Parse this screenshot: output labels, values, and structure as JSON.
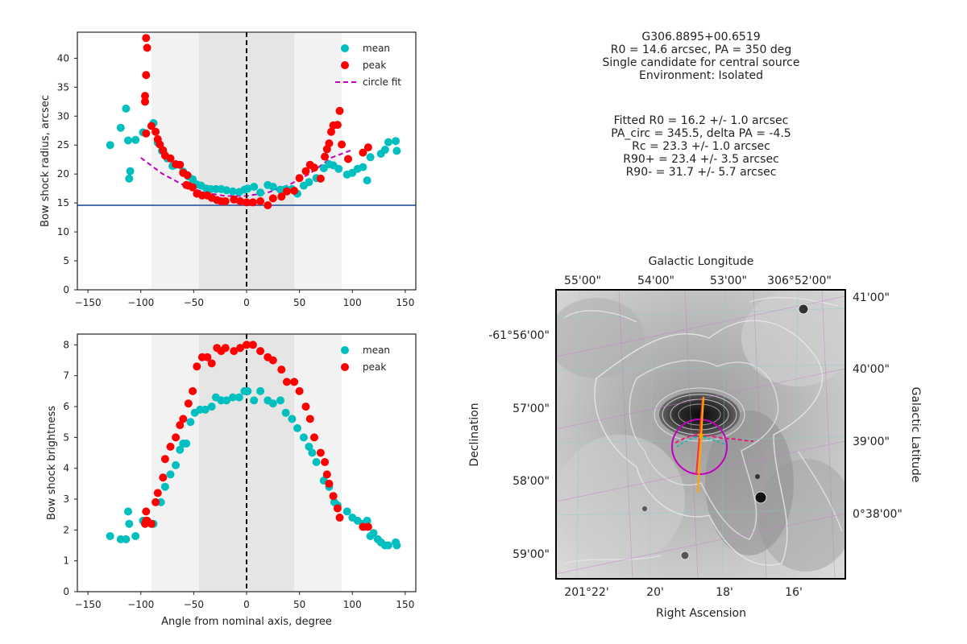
{
  "info": {
    "block1": [
      "G306.8895+00.6519",
      "R0 = 14.6 arcsec, PA = 350 deg",
      "Single candidate for central source",
      "Environment: Isolated"
    ],
    "block2": [
      "Fitted R0 = 16.2 +/- 1.0 arcsec",
      "PA_circ = 345.5, delta PA = -4.5",
      "Rc = 23.3 +/- 1.0 arcsec",
      "R90+ = 23.4 +/- 3.5 arcsec",
      "R90- = 31.7 +/- 5.7 arcsec"
    ]
  },
  "colors": {
    "mean": "#00bfbf",
    "peak": "#ff0000",
    "fit": "#bf00bf",
    "hline": "#4c72b0",
    "band_outer": "#f2f2f2",
    "band_inner": "#e5e5e5"
  },
  "chart_data": [
    {
      "type": "scatter",
      "xlim": [
        -160,
        160
      ],
      "ylim": [
        0,
        44.5
      ],
      "xticks": [
        -150,
        -100,
        -50,
        0,
        50,
        100,
        150
      ],
      "yticks": [
        0,
        5,
        10,
        15,
        20,
        25,
        30,
        35,
        40
      ],
      "xlabel": "",
      "ylabel": "Bow shock radius, arcsec",
      "legend": {
        "placement": "top-right",
        "entries": [
          "mean",
          "peak",
          "circle fit"
        ]
      },
      "bands": [
        [
          -90,
          90
        ],
        [
          -45,
          45
        ]
      ],
      "vline": 0,
      "hline": 14.6,
      "series": [
        {
          "name": "mean",
          "points": [
            [
              -129,
              25
            ],
            [
              -119,
              28
            ],
            [
              -114,
              31.3
            ],
            [
              -112,
              25.8
            ],
            [
              -111,
              19.2
            ],
            [
              -110,
              20.5
            ],
            [
              -105,
              25.9
            ],
            [
              -98,
              27.2
            ],
            [
              -88,
              28.8
            ],
            [
              -84,
              25.4
            ],
            [
              -80,
              24
            ],
            [
              -75,
              22.7
            ],
            [
              -70,
              21.4
            ],
            [
              -67,
              21.6
            ],
            [
              -60,
              20.4
            ],
            [
              -55,
              19.6
            ],
            [
              -51,
              19.1
            ],
            [
              -47,
              18.2
            ],
            [
              -43,
              18
            ],
            [
              -38,
              17.5
            ],
            [
              -34,
              17.4
            ],
            [
              -29,
              17.4
            ],
            [
              -24,
              17.4
            ],
            [
              -19,
              17.2
            ],
            [
              -13,
              17
            ],
            [
              -7,
              16.9
            ],
            [
              -2,
              17.3
            ],
            [
              1,
              17.5
            ],
            [
              7,
              17.8
            ],
            [
              13,
              16.8
            ],
            [
              20,
              18.1
            ],
            [
              25,
              17.8
            ],
            [
              32,
              17.3
            ],
            [
              37,
              17.4
            ],
            [
              43,
              17.4
            ],
            [
              48,
              16.6
            ],
            [
              54,
              18
            ],
            [
              59,
              18.6
            ],
            [
              66,
              19.3
            ],
            [
              73,
              21
            ],
            [
              78,
              21.7
            ],
            [
              82,
              21.5
            ],
            [
              87,
              20.9
            ],
            [
              95,
              19.9
            ],
            [
              100,
              20.2
            ],
            [
              105,
              20.9
            ],
            [
              110,
              21.2
            ],
            [
              114,
              18.9
            ],
            [
              117,
              22.9
            ],
            [
              127,
              23.5
            ],
            [
              131,
              24.2
            ],
            [
              134,
              25.5
            ],
            [
              141,
              25.7
            ],
            [
              142,
              24
            ]
          ]
        },
        {
          "name": "peak",
          "points": [
            [
              -95,
              43.5
            ],
            [
              -94,
              41.8
            ],
            [
              -95,
              37.1
            ],
            [
              -96,
              33.5
            ],
            [
              -96,
              32.5
            ],
            [
              -95,
              27
            ],
            [
              -90,
              28.3
            ],
            [
              -86,
              27.3
            ],
            [
              -84,
              26
            ],
            [
              -82,
              25.1
            ],
            [
              -79,
              24.1
            ],
            [
              -77,
              23.2
            ],
            [
              -72,
              22.7
            ],
            [
              -67,
              21.7
            ],
            [
              -63,
              21.6
            ],
            [
              -60,
              20.2
            ],
            [
              -56,
              19.8
            ],
            [
              -57,
              18.1
            ],
            [
              -55,
              18
            ],
            [
              -51,
              17.7
            ],
            [
              -47,
              16.6
            ],
            [
              -42,
              16.3
            ],
            [
              -37,
              16.3
            ],
            [
              -33,
              15.9
            ],
            [
              -28,
              15.5
            ],
            [
              -24,
              15.3
            ],
            [
              -20,
              15.3
            ],
            [
              -12,
              15.6
            ],
            [
              -6,
              15.3
            ],
            [
              0,
              15.1
            ],
            [
              6,
              15.1
            ],
            [
              13,
              15.3
            ],
            [
              20,
              14.6
            ],
            [
              25,
              15.8
            ],
            [
              33,
              16.1
            ],
            [
              38,
              17
            ],
            [
              45,
              17.1
            ],
            [
              50,
              19.3
            ],
            [
              56,
              20.5
            ],
            [
              60,
              21.6
            ],
            [
              64,
              21.1
            ],
            [
              70,
              19.2
            ],
            [
              74,
              23
            ],
            [
              76,
              24.3
            ],
            [
              78,
              25.3
            ],
            [
              80,
              27.3
            ],
            [
              82,
              28.4
            ],
            [
              86,
              28.5
            ],
            [
              88,
              30.9
            ],
            [
              90,
              25.1
            ],
            [
              96,
              22.6
            ],
            [
              110,
              23.7
            ],
            [
              115,
              24.6
            ]
          ]
        }
      ],
      "fit_curve": [
        [
          -100,
          22.8
        ],
        [
          -80,
          20.1
        ],
        [
          -60,
          18.1
        ],
        [
          -40,
          16.8
        ],
        [
          -20,
          16.2
        ],
        [
          0,
          16.2
        ],
        [
          20,
          16.8
        ],
        [
          40,
          18.1
        ],
        [
          60,
          20.1
        ],
        [
          80,
          22.8
        ],
        [
          100,
          24.2
        ]
      ]
    },
    {
      "type": "scatter",
      "xlim": [
        -160,
        160
      ],
      "ylim": [
        0,
        8.35
      ],
      "xticks": [
        -150,
        -100,
        -50,
        0,
        50,
        100,
        150
      ],
      "yticks": [
        0,
        1,
        2,
        3,
        4,
        5,
        6,
        7,
        8
      ],
      "xlabel": "Angle from nominal axis, degree",
      "ylabel": "Bow shock brightness",
      "legend": {
        "placement": "top-right",
        "entries": [
          "mean",
          "peak"
        ]
      },
      "bands": [
        [
          -90,
          90
        ],
        [
          -45,
          45
        ]
      ],
      "vline": 0,
      "series": [
        {
          "name": "mean",
          "points": [
            [
              -129,
              1.8
            ],
            [
              -119,
              1.7
            ],
            [
              -114,
              1.7
            ],
            [
              -112,
              2.6
            ],
            [
              -111,
              2.2
            ],
            [
              -105,
              1.8
            ],
            [
              -98,
              2.3
            ],
            [
              -94,
              2.3
            ],
            [
              -88,
              2.2
            ],
            [
              -81,
              2.9
            ],
            [
              -77,
              3.4
            ],
            [
              -72,
              3.8
            ],
            [
              -67,
              4.1
            ],
            [
              -63,
              4.6
            ],
            [
              -60,
              4.8
            ],
            [
              -57,
              4.8
            ],
            [
              -53,
              5.5
            ],
            [
              -49,
              5.8
            ],
            [
              -44,
              5.9
            ],
            [
              -39,
              5.9
            ],
            [
              -33,
              6
            ],
            [
              -29,
              6.3
            ],
            [
              -24,
              6.2
            ],
            [
              -19,
              6.2
            ],
            [
              -13,
              6.3
            ],
            [
              -7,
              6.3
            ],
            [
              -2,
              6.5
            ],
            [
              1,
              6.5
            ],
            [
              7,
              6.2
            ],
            [
              13,
              6.5
            ],
            [
              20,
              6.2
            ],
            [
              25,
              6.1
            ],
            [
              32,
              6.2
            ],
            [
              37,
              5.8
            ],
            [
              43,
              5.6
            ],
            [
              48,
              5.3
            ],
            [
              54,
              5
            ],
            [
              59,
              4.7
            ],
            [
              62,
              4.5
            ],
            [
              66,
              4.2
            ],
            [
              73,
              3.6
            ],
            [
              78,
              3.4
            ],
            [
              83,
              2.9
            ],
            [
              86,
              2.8
            ],
            [
              95,
              2.6
            ],
            [
              100,
              2.4
            ],
            [
              105,
              2.3
            ],
            [
              110,
              2.2
            ],
            [
              112,
              2.1
            ],
            [
              114,
              2.3
            ],
            [
              117,
              1.8
            ],
            [
              120,
              1.9
            ],
            [
              124,
              1.7
            ],
            [
              127,
              1.6
            ],
            [
              131,
              1.5
            ],
            [
              134,
              1.5
            ],
            [
              141,
              1.6
            ],
            [
              142,
              1.5
            ]
          ]
        },
        {
          "name": "peak",
          "points": [
            [
              -95,
              2.6
            ],
            [
              -94,
              2.3
            ],
            [
              -95,
              2.3
            ],
            [
              -96,
              2.2
            ],
            [
              -90,
              2.2
            ],
            [
              -86,
              2.9
            ],
            [
              -84,
              3.2
            ],
            [
              -79,
              3.7
            ],
            [
              -77,
              4.3
            ],
            [
              -72,
              4.7
            ],
            [
              -67,
              5
            ],
            [
              -63,
              5.4
            ],
            [
              -60,
              5.6
            ],
            [
              -55,
              6.1
            ],
            [
              -51,
              6.5
            ],
            [
              -47,
              7.3
            ],
            [
              -42,
              7.6
            ],
            [
              -37,
              7.6
            ],
            [
              -33,
              7.4
            ],
            [
              -28,
              7.9
            ],
            [
              -24,
              7.8
            ],
            [
              -20,
              7.9
            ],
            [
              -12,
              7.8
            ],
            [
              -6,
              7.9
            ],
            [
              0,
              8
            ],
            [
              6,
              8
            ],
            [
              13,
              7.8
            ],
            [
              20,
              7.6
            ],
            [
              25,
              7.5
            ],
            [
              33,
              7.2
            ],
            [
              38,
              6.8
            ],
            [
              45,
              6.8
            ],
            [
              50,
              6.5
            ],
            [
              56,
              6
            ],
            [
              60,
              5.6
            ],
            [
              64,
              5
            ],
            [
              70,
              4.5
            ],
            [
              74,
              4.2
            ],
            [
              76,
              3.8
            ],
            [
              78,
              3.5
            ],
            [
              82,
              3.1
            ],
            [
              86,
              2.7
            ],
            [
              88,
              2.4
            ],
            [
              110,
              2.1
            ],
            [
              115,
              2.1
            ]
          ]
        }
      ]
    },
    {
      "type": "image-map",
      "title": "Galactic Longitude",
      "xlabel": "Right Ascension",
      "ylabel": "Declination",
      "right_label": "Galactic Latitude",
      "top_ticks": [
        "55'00\"",
        "54'00\"",
        "53'00\"",
        "306°52'00\""
      ],
      "bottom_ticks": [
        "201°22'",
        "20'",
        "18'",
        "16'"
      ],
      "left_ticks": [
        "-61°56'00\"",
        "57'00\"",
        "58'00\"",
        "59'00\""
      ],
      "right_ticks": [
        "41'00\"",
        "40'00\"",
        "39'00\"",
        "0°38'00\""
      ]
    }
  ]
}
